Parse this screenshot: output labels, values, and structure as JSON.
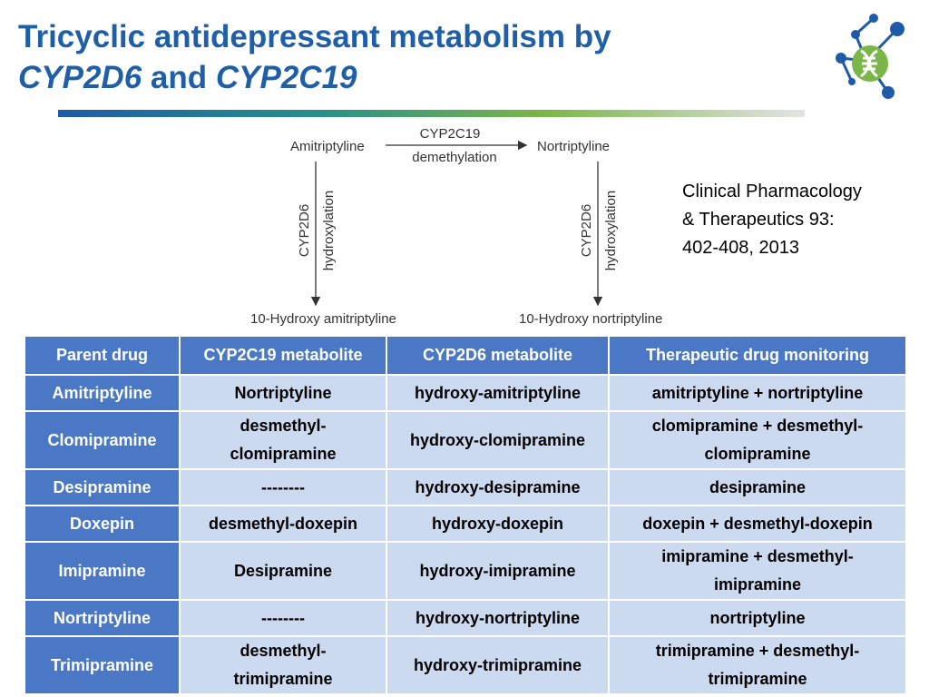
{
  "title": {
    "line1": "Tricyclic antidepressant metabolism by",
    "gene1": "CYP2D6",
    "conj": "and",
    "gene2": "CYP2C19"
  },
  "citation": {
    "line1": "Clinical Pharmacology",
    "line2": "& Therapeutics 93:",
    "line3": "402-408, 2013"
  },
  "diagram": {
    "parent": "Amitriptyline",
    "top_enzyme": "CYP2C19",
    "top_reaction": "demethylation",
    "demethylated": "Nortriptyline",
    "side_enzyme": "CYP2D6",
    "side_reaction": "hydroxylation",
    "hydroxy_parent": "10-Hydroxy amitriptyline",
    "hydroxy_demethylated": "10-Hydroxy nortriptyline"
  },
  "table": {
    "headers": [
      "Parent drug",
      "CYP2C19 metabolite",
      "CYP2D6 metabolite",
      "Therapeutic drug monitoring"
    ],
    "rows": [
      [
        "Amitriptyline",
        "Nortriptyline",
        "hydroxy-amitriptyline",
        "amitriptyline + nortriptyline"
      ],
      [
        "Clomipramine",
        "desmethyl-\nclomipramine",
        "hydroxy-clomipramine",
        "clomipramine + desmethyl-\nclomipramine"
      ],
      [
        "Desipramine",
        "--------",
        "hydroxy-desipramine",
        "desipramine"
      ],
      [
        "Doxepin",
        "desmethyl-doxepin",
        "hydroxy-doxepin",
        "doxepin + desmethyl-doxepin"
      ],
      [
        "Imipramine",
        "Desipramine",
        "hydroxy-imipramine",
        "imipramine + desmethyl-\nimipramine"
      ],
      [
        "Nortriptyline",
        "--------",
        "hydroxy-nortriptyline",
        "nortriptyline"
      ],
      [
        "Trimipramine",
        "desmethyl-\ntrimipramine",
        "hydroxy-trimipramine",
        "trimipramine + desmethyl-\ntrimipramine"
      ]
    ]
  },
  "colors": {
    "title": "#1f5fa8",
    "header_bg": "#4a78c4",
    "cell_bg": "#ccdaf0",
    "logo_blue": "#1e5aa8",
    "logo_green": "#7ab648"
  },
  "icons": [
    "molecule-logo-icon"
  ]
}
